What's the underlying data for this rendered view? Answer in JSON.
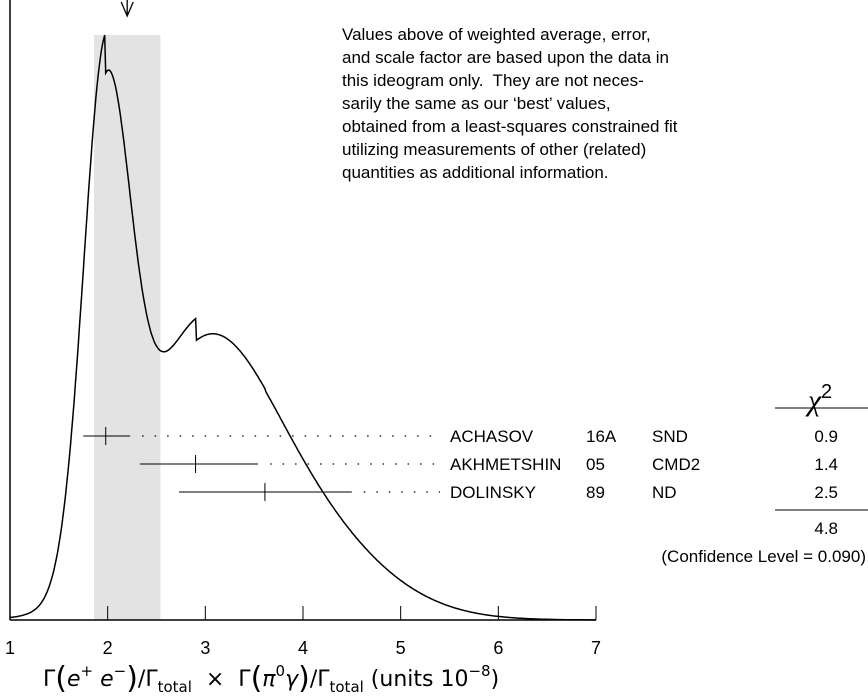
{
  "chart_data": {
    "type": "ideogram",
    "weighted_average": 2.2,
    "error_band": [
      1.86,
      2.54
    ],
    "note_lines": [
      "Values above of weighted average, error,",
      "and scale factor are based upon the data in",
      "this ideogram only.  They are not neces-",
      "sarily the same as our ‘best’ values,",
      "obtained from a least-squares constrained fit",
      "utilizing measurements of other (related)",
      "quantities as additional information."
    ],
    "measurements": [
      {
        "name": "ACHASOV",
        "year": "16A",
        "experiment": "SND",
        "value": 1.98,
        "low": 1.75,
        "high": 2.23,
        "chi2": 0.9
      },
      {
        "name": "AKHMETSHIN",
        "year": "05",
        "experiment": "CMD2",
        "value": 2.9,
        "low": 2.33,
        "high": 3.54,
        "chi2": 1.4
      },
      {
        "name": "DOLINSKY",
        "year": "89",
        "experiment": "ND",
        "value": 3.61,
        "low": 2.73,
        "high": 4.5,
        "chi2": 2.5
      }
    ],
    "chi2_header": [
      "χ",
      "2"
    ],
    "chi2_total": 4.8,
    "confidence_level_text": "(Confidence Level = 0.090)",
    "xlim": [
      1,
      7
    ],
    "xticks": [
      1,
      2,
      3,
      4,
      5,
      6,
      7
    ],
    "x_label": [
      "Γ",
      "(",
      "e",
      "+",
      " e",
      "−",
      ")",
      "/Γ",
      "total",
      "  ×  Γ",
      "(",
      "π",
      "0",
      "γ",
      ")",
      "/Γ",
      "total",
      " (units 10",
      "−8",
      ")"
    ],
    "color": "#000000",
    "band_color": "#e3e3e3"
  }
}
